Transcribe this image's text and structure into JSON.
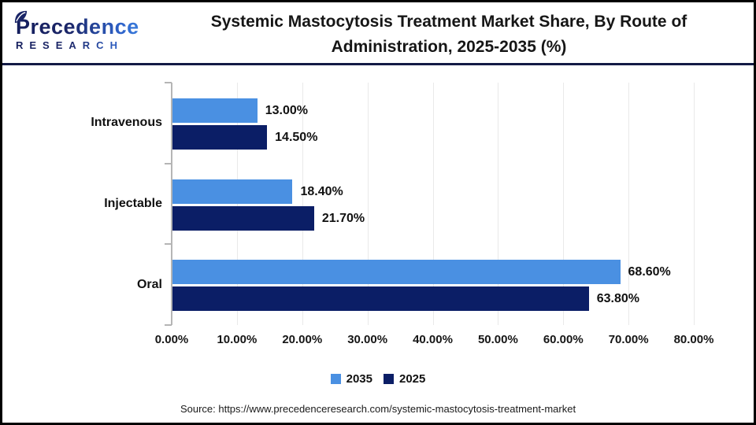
{
  "header": {
    "logo_name": "Precedence",
    "logo_sub": "RESEARCH",
    "title_lines": [
      "Systemic Mastocytosis Treatment Market Share, By Route of",
      "Administration, 2025-2035 (%)"
    ]
  },
  "chart_data": {
    "type": "bar",
    "orientation": "horizontal",
    "title": "Systemic Mastocytosis Treatment Market Share, By Route of Administration, 2025-2035 (%)",
    "categories": [
      "Intravenous",
      "Injectable",
      "Oral"
    ],
    "series": [
      {
        "name": "2035",
        "color": "#4A90E2",
        "values": [
          13.0,
          18.4,
          68.6
        ],
        "labels": [
          "13.00%",
          "18.40%",
          "68.60%"
        ]
      },
      {
        "name": "2025",
        "color": "#0B1E66",
        "values": [
          14.5,
          21.7,
          63.8
        ],
        "labels": [
          "14.50%",
          "21.70%",
          "63.80%"
        ]
      }
    ],
    "x_ticks": [
      "0.00%",
      "10.00%",
      "20.00%",
      "30.00%",
      "40.00%",
      "50.00%",
      "60.00%",
      "70.00%",
      "80.00%"
    ],
    "xlim": [
      0,
      80
    ],
    "grid": true,
    "legend_position": "bottom"
  },
  "footer": {
    "source": "Source: https://www.precedenceresearch.com/systemic-mastocytosis-treatment-market"
  }
}
